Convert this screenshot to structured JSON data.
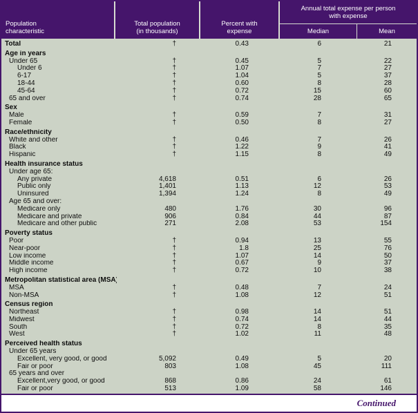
{
  "colors": {
    "header_bg": "#45156b",
    "header_text": "#ffffff",
    "body_bg": "#ccd3c6",
    "border": "#45156b",
    "line": "#d8ddd2",
    "text": "#0d0d0d",
    "continued": "#45156b"
  },
  "header": {
    "col1_lines": [
      "Population",
      "characteristic"
    ],
    "col2_lines": [
      "Total population",
      "(in thousands)"
    ],
    "col3_lines": [
      "Percent with",
      "expense"
    ],
    "group_lines": [
      "Annual total expense per person",
      "with expense"
    ],
    "median": "Median",
    "mean": "Mean"
  },
  "rows": [
    {
      "label": "Total",
      "bold": true,
      "indent": 0,
      "pop": "†",
      "pct": "0.43",
      "median": "6",
      "mean": "21"
    },
    {
      "label": "Age in years",
      "bold": true,
      "indent": 0,
      "gap": true
    },
    {
      "label": "Under 65",
      "indent": 1,
      "pop": "†",
      "pct": "0.45",
      "median": "5",
      "mean": "22"
    },
    {
      "label": "Under 6",
      "indent": 2,
      "pop": "†",
      "pct": "1.07",
      "median": "7",
      "mean": "27"
    },
    {
      "label": "6-17",
      "indent": 2,
      "pop": "†",
      "pct": "1.04",
      "median": "5",
      "mean": "37"
    },
    {
      "label": "18-44",
      "indent": 2,
      "pop": "†",
      "pct": "0.60",
      "median": "8",
      "mean": "28"
    },
    {
      "label": "45-64",
      "indent": 2,
      "pop": "†",
      "pct": "0.72",
      "median": "15",
      "mean": "60"
    },
    {
      "label": "65 and over",
      "indent": 1,
      "pop": "†",
      "pct": "0.74",
      "median": "28",
      "mean": "65"
    },
    {
      "label": "Sex",
      "bold": true,
      "indent": 0,
      "gap": true
    },
    {
      "label": "Male",
      "indent": 1,
      "pop": "†",
      "pct": "0.59",
      "median": "7",
      "mean": "31"
    },
    {
      "label": "Female",
      "indent": 1,
      "pop": "†",
      "pct": "0.50",
      "median": "8",
      "mean": "27"
    },
    {
      "label": "Race/ethnicity",
      "bold": true,
      "indent": 0,
      "gap": true
    },
    {
      "label": "White and other",
      "indent": 1,
      "pop": "†",
      "pct": "0.46",
      "median": "7",
      "mean": "26"
    },
    {
      "label": "Black",
      "indent": 1,
      "pop": "†",
      "pct": "1.22",
      "median": "9",
      "mean": "41"
    },
    {
      "label": "Hispanic",
      "indent": 1,
      "pop": "†",
      "pct": "1.15",
      "median": "8",
      "mean": "49"
    },
    {
      "label": "Health insurance status",
      "bold": true,
      "indent": 0,
      "gap": true
    },
    {
      "label": "Under age 65:",
      "indent": 1
    },
    {
      "label": "Any private",
      "indent": 2,
      "pop": "4,618",
      "pct": "0.51",
      "median": "6",
      "mean": "26"
    },
    {
      "label": "Public only",
      "indent": 2,
      "pop": "1,401",
      "pct": "1.13",
      "median": "12",
      "mean": "53"
    },
    {
      "label": "Uninsured",
      "indent": 2,
      "pop": "1,394",
      "pct": "1.24",
      "median": "8",
      "mean": "49"
    },
    {
      "label": "Age 65 and over:",
      "indent": 1
    },
    {
      "label": "Medicare only",
      "indent": 2,
      "pop": "480",
      "pct": "1.76",
      "median": "30",
      "mean": "96"
    },
    {
      "label": "Medicare and private",
      "indent": 2,
      "pop": "906",
      "pct": "0.84",
      "median": "44",
      "mean": "87"
    },
    {
      "label": "Medicare and other public",
      "indent": 2,
      "pop": "271",
      "pct": "2.08",
      "median": "53",
      "mean": "154"
    },
    {
      "label": "Poverty status",
      "bold": true,
      "indent": 0,
      "gap": true
    },
    {
      "label": "Poor",
      "indent": 1,
      "pop": "†",
      "pct": "0.94",
      "median": "13",
      "mean": "55"
    },
    {
      "label": "Near-poor",
      "indent": 1,
      "pop": "†",
      "pct": "1.8",
      "median": "25",
      "mean": "76"
    },
    {
      "label": "Low income",
      "indent": 1,
      "pop": "†",
      "pct": "1.07",
      "median": "14",
      "mean": "50"
    },
    {
      "label": "Middle income",
      "indent": 1,
      "pop": "†",
      "pct": "0.67",
      "median": "9",
      "mean": "37"
    },
    {
      "label": "High income",
      "indent": 1,
      "pop": "†",
      "pct": "0.72",
      "median": "10",
      "mean": "38"
    },
    {
      "label": "Metropolitan statistical area (MSA)",
      "bold": true,
      "indent": 0,
      "gap": true
    },
    {
      "label": "MSA",
      "indent": 1,
      "pop": "†",
      "pct": "0.48",
      "median": "7",
      "mean": "24"
    },
    {
      "label": "Non-MSA",
      "indent": 1,
      "pop": "†",
      "pct": "1.08",
      "median": "12",
      "mean": "51"
    },
    {
      "label": "Census region",
      "bold": true,
      "indent": 0,
      "gap": true
    },
    {
      "label": "Northeast",
      "indent": 1,
      "pop": "†",
      "pct": "0.98",
      "median": "14",
      "mean": "51"
    },
    {
      "label": "Midwest",
      "indent": 1,
      "pop": "†",
      "pct": "0.74",
      "median": "14",
      "mean": "44"
    },
    {
      "label": "South",
      "indent": 1,
      "pop": "†",
      "pct": "0.72",
      "median": "8",
      "mean": "35"
    },
    {
      "label": "West",
      "indent": 1,
      "pop": "†",
      "pct": "1.02",
      "median": "11",
      "mean": "48"
    },
    {
      "label": "Perceived health status",
      "bold": true,
      "indent": 0,
      "gap": true
    },
    {
      "label": "Under 65 years",
      "indent": 1
    },
    {
      "label": "Excellent, very good, or good",
      "indent": 2,
      "pop": "5,092",
      "pct": "0.49",
      "median": "5",
      "mean": "20"
    },
    {
      "label": "Fair or poor",
      "indent": 2,
      "pop": "803",
      "pct": "1.08",
      "median": "45",
      "mean": "111"
    },
    {
      "label": "65 years and over",
      "indent": 1
    },
    {
      "label": "Excellent,very good, or good",
      "indent": 2,
      "pop": "868",
      "pct": "0.86",
      "median": "24",
      "mean": "61"
    },
    {
      "label": "Fair or poor",
      "indent": 2,
      "pop": "513",
      "pct": "1.09",
      "median": "58",
      "mean": "146"
    }
  ],
  "footer": {
    "continued": "Continued"
  }
}
